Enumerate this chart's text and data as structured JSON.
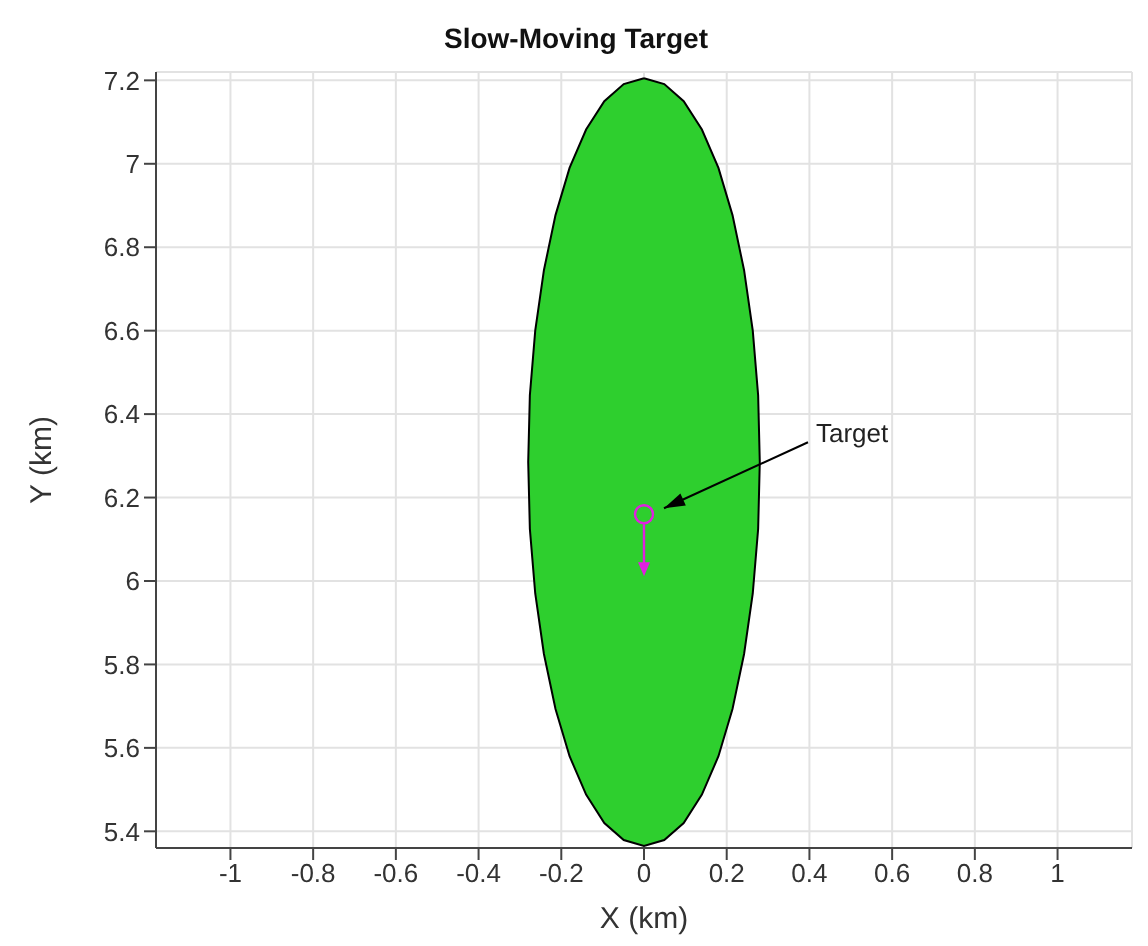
{
  "chart_data": {
    "type": "area",
    "title": "Slow-Moving Target",
    "xlabel": "X (km)",
    "ylabel": "Y (km)",
    "xlim": [
      -1.18,
      1.18
    ],
    "xticks": [
      -1,
      -0.8,
      -0.6,
      -0.4,
      -0.2,
      0,
      0.2,
      0.4,
      0.6,
      0.8,
      1
    ],
    "ylim": [
      5.36,
      7.22
    ],
    "yticks": [
      5.4,
      5.6,
      5.8,
      6,
      6.2,
      6.4,
      6.6,
      6.8,
      7,
      7.2
    ],
    "grid": true,
    "legend": false,
    "series": [
      {
        "type": "area",
        "color": "#2ecf2e",
        "x": [
          0,
          0.049,
          0.096,
          0.14,
          0.18,
          0.214,
          0.242,
          0.263,
          0.276,
          0.28,
          0.276,
          0.263,
          0.242,
          0.214,
          0.18,
          0.14,
          0.096,
          0.049,
          0,
          -0.049,
          -0.096,
          -0.14,
          -0.18,
          -0.214,
          -0.242,
          -0.263,
          -0.276,
          -0.28,
          -0.276,
          -0.263,
          -0.242,
          -0.214,
          -0.18,
          -0.14,
          -0.096,
          -0.049,
          0
        ],
        "values": [
          7.205,
          7.191,
          7.15,
          7.082,
          6.99,
          6.877,
          6.745,
          6.6,
          6.445,
          6.285,
          6.125,
          5.97,
          5.825,
          5.693,
          5.58,
          5.488,
          5.42,
          5.379,
          5.365,
          5.379,
          5.42,
          5.488,
          5.58,
          5.693,
          5.825,
          5.97,
          6.125,
          6.285,
          6.445,
          6.6,
          6.745,
          6.877,
          6.99,
          7.082,
          7.15,
          7.191,
          7.205
        ]
      },
      {
        "type": "scatter",
        "marker": "circle",
        "color": "#e020e0",
        "x": [
          0
        ],
        "values": [
          6.16
        ]
      }
    ],
    "annotations": [
      "Target"
    ]
  }
}
